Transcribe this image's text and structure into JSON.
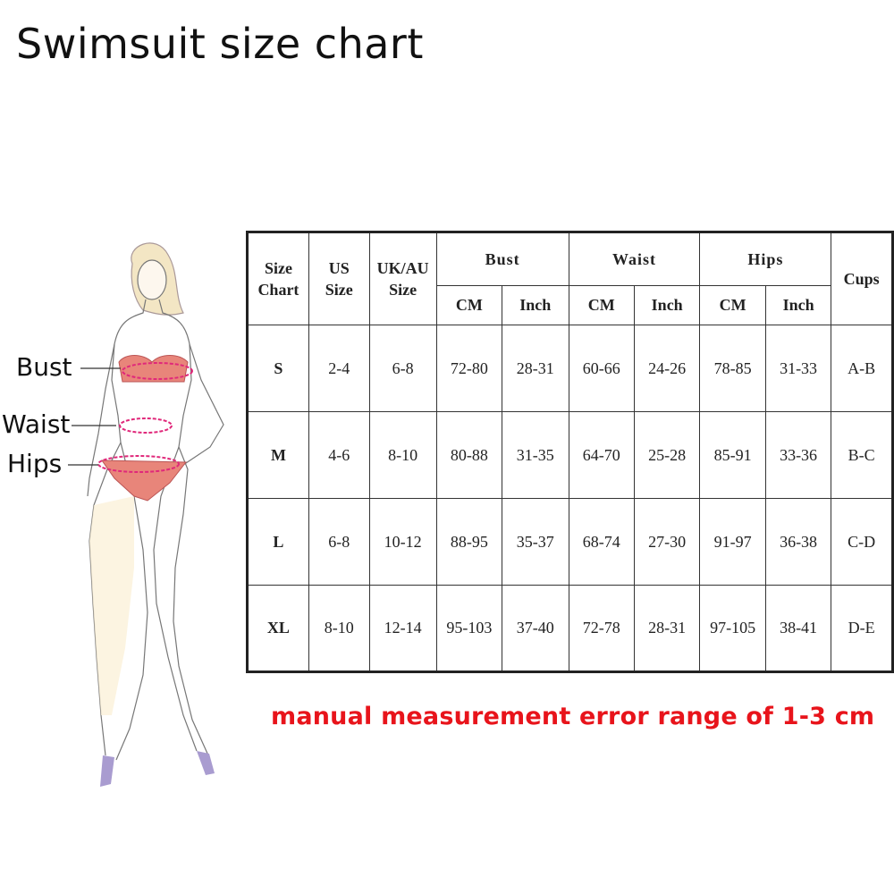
{
  "title": "Swimsuit size chart",
  "figure": {
    "labels": {
      "bust": "Bust",
      "waist": "Waist",
      "hips": "Hips"
    },
    "measure_line_color": "#e0287a",
    "swimsuit_color": "#e8857a"
  },
  "table": {
    "headers": {
      "size_chart": "Size Chart",
      "us_size": "US Size",
      "uk_au_size": "UK/AU Size",
      "bust": "Bust",
      "waist": "Waist",
      "hips": "Hips",
      "cups": "Cups",
      "cm": "CM",
      "inch": "Inch"
    },
    "rows": [
      {
        "size": "S",
        "us": "2-4",
        "uk_au": "6-8",
        "bust_cm": "72-80",
        "bust_inch": "28-31",
        "waist_cm": "60-66",
        "waist_inch": "24-26",
        "hips_cm": "78-85",
        "hips_inch": "31-33",
        "cups": "A-B"
      },
      {
        "size": "M",
        "us": "4-6",
        "uk_au": "8-10",
        "bust_cm": "80-88",
        "bust_inch": "31-35",
        "waist_cm": "64-70",
        "waist_inch": "25-28",
        "hips_cm": "85-91",
        "hips_inch": "33-36",
        "cups": "B-C"
      },
      {
        "size": "L",
        "us": "6-8",
        "uk_au": "10-12",
        "bust_cm": "88-95",
        "bust_inch": "35-37",
        "waist_cm": "68-74",
        "waist_inch": "27-30",
        "hips_cm": "91-97",
        "hips_inch": "36-38",
        "cups": "C-D"
      },
      {
        "size": "XL",
        "us": "8-10",
        "uk_au": "12-14",
        "bust_cm": "95-103",
        "bust_inch": "37-40",
        "waist_cm": "72-78",
        "waist_inch": "28-31",
        "hips_cm": "97-105",
        "hips_inch": "38-41",
        "cups": "D-E"
      }
    ]
  },
  "note": "manual measurement error range of 1-3 cm",
  "note_color": "#e8141b"
}
